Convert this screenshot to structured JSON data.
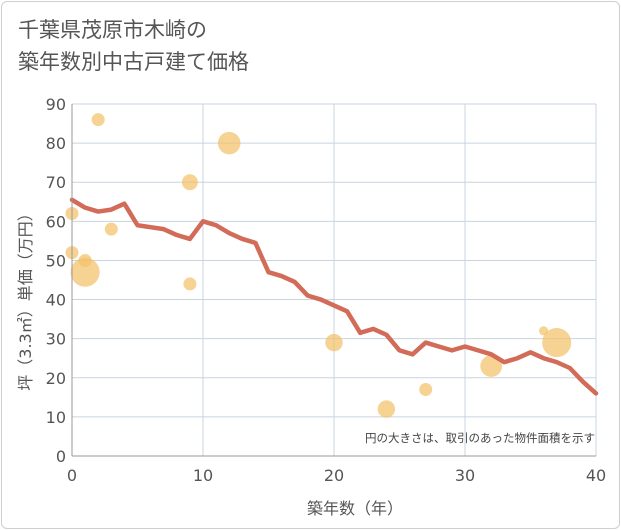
{
  "title": {
    "line1": "千葉県茂原市木崎の",
    "line2": "築年数別中古戸建て価格"
  },
  "colors": {
    "bubble": "#f3c06a",
    "line": "#d26b58",
    "grid": "#c9d4e0",
    "text": "#555555"
  },
  "chart_data": {
    "type": "scatter",
    "title": "千葉県茂原市木崎の築年数別中古戸建て価格",
    "xlabel": "築年数（年）",
    "ylabel": "坪（3.3㎡）単価（万円）",
    "xlim": [
      0,
      40
    ],
    "ylim": [
      0,
      90
    ],
    "xticks": [
      "0",
      "10",
      "20",
      "30",
      "40"
    ],
    "yticks": [
      "0",
      "10",
      "20",
      "30",
      "40",
      "50",
      "60",
      "70",
      "80",
      "90"
    ],
    "note": "円の大きさは、取引のあった物件面積を示す",
    "scatter": [
      {
        "x": 0,
        "y": 62,
        "size": 1
      },
      {
        "x": 0,
        "y": 52,
        "size": 1
      },
      {
        "x": 1,
        "y": 47,
        "size": 5
      },
      {
        "x": 1,
        "y": 50,
        "size": 1
      },
      {
        "x": 2,
        "y": 86,
        "size": 1
      },
      {
        "x": 3,
        "y": 58,
        "size": 1
      },
      {
        "x": 9,
        "y": 70,
        "size": 1.5
      },
      {
        "x": 9,
        "y": 44,
        "size": 1
      },
      {
        "x": 12,
        "y": 80,
        "size": 3
      },
      {
        "x": 20,
        "y": 29,
        "size": 1.8
      },
      {
        "x": 24,
        "y": 12,
        "size": 1.8
      },
      {
        "x": 27,
        "y": 17,
        "size": 1
      },
      {
        "x": 32,
        "y": 23,
        "size": 2.8
      },
      {
        "x": 36,
        "y": 32,
        "size": 0.5
      },
      {
        "x": 37,
        "y": 29,
        "size": 5
      }
    ],
    "trend": {
      "x": [
        0,
        1,
        2,
        3,
        4,
        5,
        6,
        7,
        8,
        9,
        10,
        11,
        12,
        13,
        14,
        15,
        16,
        17,
        18,
        19,
        20,
        21,
        22,
        23,
        24,
        25,
        26,
        27,
        28,
        29,
        30,
        31,
        32,
        33,
        34,
        35,
        36,
        37,
        38,
        39,
        40
      ],
      "y": [
        65.5,
        63.5,
        62.5,
        63,
        64.5,
        59,
        58.5,
        58,
        56.5,
        55.5,
        60,
        59,
        57,
        55.5,
        54.5,
        47,
        46,
        44.5,
        41,
        40,
        38.5,
        37,
        31.5,
        32.5,
        31,
        27,
        26,
        29,
        28,
        27,
        28,
        27,
        26,
        24,
        25,
        26.5,
        25,
        24,
        22.5,
        19,
        16
      ]
    }
  }
}
